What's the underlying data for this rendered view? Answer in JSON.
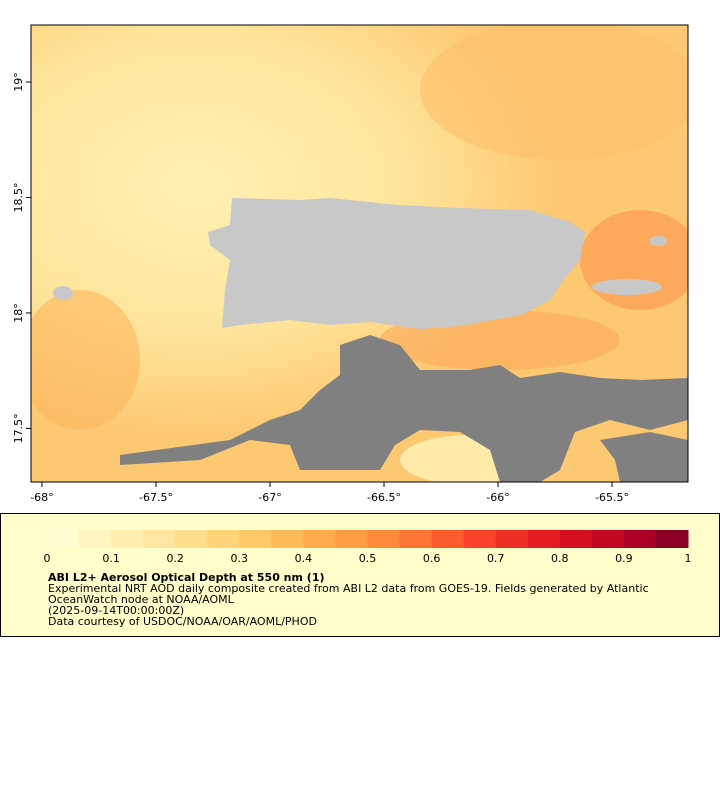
{
  "map": {
    "xlim": [
      -68.048,
      -65.167
    ],
    "ylim": [
      17.268,
      19.247
    ],
    "xticks": [
      {
        "value": -68,
        "label": "-68°"
      },
      {
        "value": -67.5,
        "label": "-67.5°"
      },
      {
        "value": -67,
        "label": "-67°"
      },
      {
        "value": -66.5,
        "label": "-66.5°"
      },
      {
        "value": -66,
        "label": "-66°"
      },
      {
        "value": -65.5,
        "label": "-65.5°"
      }
    ],
    "yticks": [
      {
        "value": 17.5,
        "label": "17.5°"
      },
      {
        "value": 18,
        "label": "18°"
      },
      {
        "value": 18.5,
        "label": "18.5°"
      },
      {
        "value": 19,
        "label": "19°"
      }
    ]
  },
  "colorbar": {
    "lim": [
      0,
      1
    ],
    "ticks": [
      0,
      0.1,
      0.2,
      0.3,
      0.4,
      0.5,
      0.6,
      0.7,
      0.8,
      0.9,
      1
    ],
    "colors": [
      "#fffdd0",
      "#fff5c0",
      "#ffeeb0",
      "#fee6a0",
      "#fedd8c",
      "#fed479",
      "#fec966",
      "#feba57",
      "#fdac4c",
      "#fd9d43",
      "#fd8a3b",
      "#fc7534",
      "#fb5c2e",
      "#f84229",
      "#ee3024",
      "#e31d1f",
      "#d4101f",
      "#c20823",
      "#aa0026",
      "#8d0026"
    ]
  },
  "caption": {
    "title": "ABI L2+ Aerosol Optical Depth at 550 nm (1)",
    "lines": [
      "Experimental NRT AOD daily composite created from ABI L2 data from GOES-19. Fields generated by Atlantic",
      "OceanWatch node at NOAA/AOML",
      "(2025-09-14T00:00:00Z)",
      "Data courtesy of USDOC/NOAA/OAR/AOML/PHOD"
    ]
  }
}
